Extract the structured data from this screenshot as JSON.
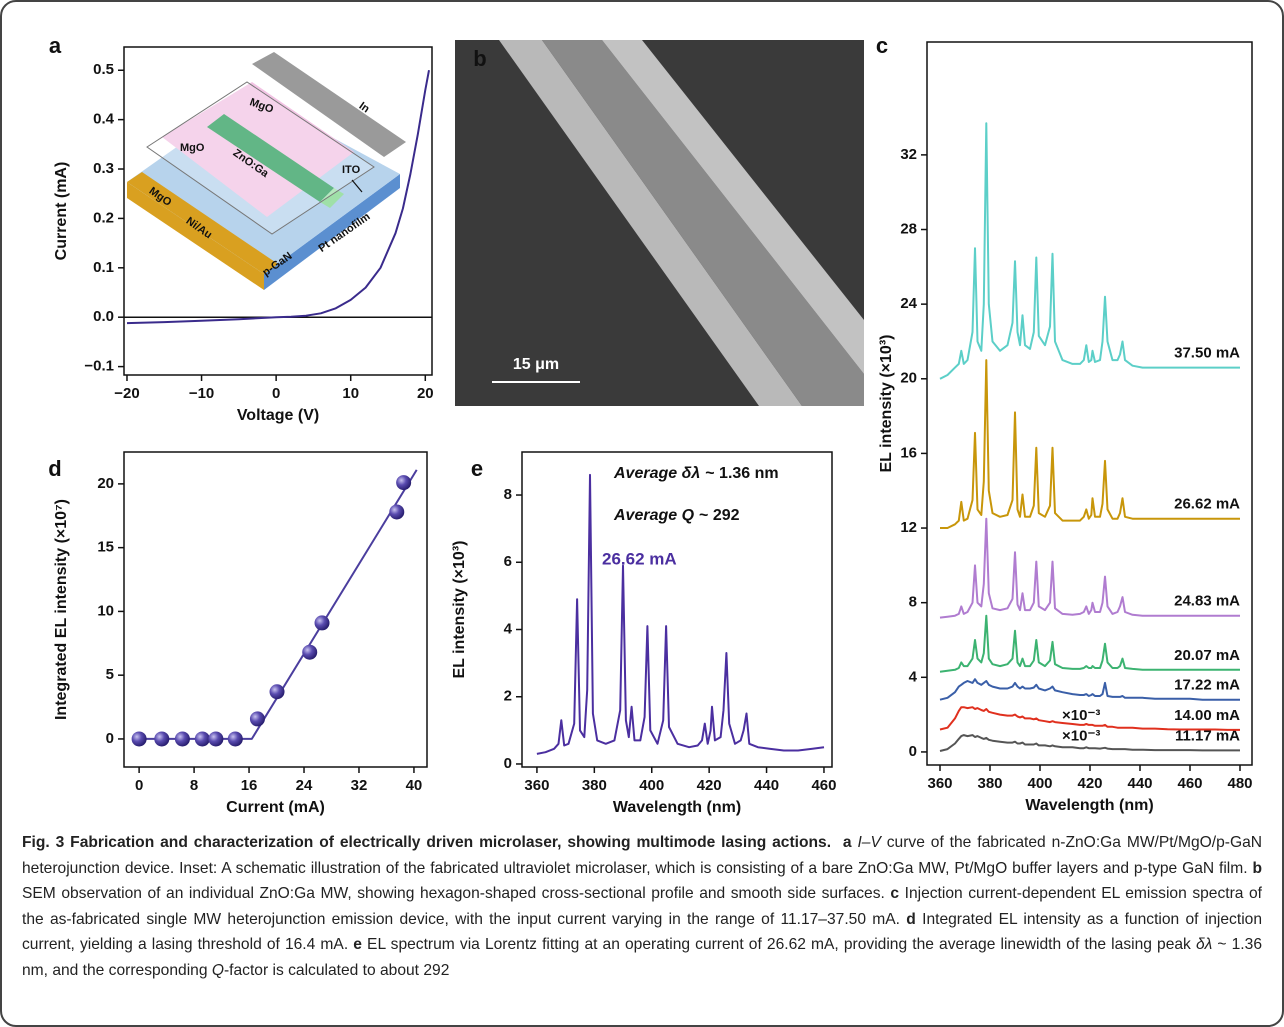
{
  "panel_b": {
    "label": "b",
    "scale_bar": "15 μm"
  },
  "inset": {
    "labels": [
      "In",
      "MgO",
      "MgO",
      "ZnO:Ga",
      "ITO",
      "MgO",
      "Ni/Au",
      "p-GaN",
      "Pt nanofilm"
    ]
  },
  "chart_data": [
    {
      "type": "line",
      "panel_label": "a",
      "x_label": "Voltage (V)",
      "y_label": "Current (mA)",
      "color": "#3a2b8c",
      "zero_line": true,
      "x": [
        -20,
        -15,
        -10,
        -5,
        0,
        2,
        4,
        6,
        8,
        10,
        12,
        14,
        16,
        17,
        18,
        19,
        20,
        20.5
      ],
      "values": [
        -0.012,
        -0.01,
        -0.007,
        -0.004,
        0,
        0.001,
        0.003,
        0.008,
        0.018,
        0.035,
        0.06,
        0.1,
        0.17,
        0.22,
        0.29,
        0.37,
        0.46,
        0.5
      ],
      "xlim": [
        -20.4,
        20.9
      ],
      "ylim": [
        -0.117,
        0.547
      ],
      "xticks": [
        {
          "value": -20,
          "label": "−20"
        },
        {
          "value": -10,
          "label": "−10"
        },
        0,
        10,
        20
      ],
      "yticks": [
        {
          "value": -0.1,
          "label": "−0.1"
        },
        {
          "value": 0,
          "label": "0.0"
        },
        0.1,
        0.2,
        0.3,
        0.4,
        0.5
      ]
    },
    {
      "type": "line",
      "panel_label": "c",
      "x_label": "Wavelength (nm)",
      "y_label": "EL intensity (×10³)",
      "x": [
        360,
        363,
        366,
        367.5,
        368.5,
        369.5,
        371,
        373,
        374,
        375,
        376.5,
        377.5,
        378.5,
        379.5,
        381,
        384,
        387,
        389,
        390,
        391,
        392,
        393,
        394,
        396,
        397.5,
        398.5,
        399.5,
        402,
        404,
        405,
        406,
        409,
        413,
        416,
        417.5,
        418.5,
        419.5,
        420.5,
        421,
        422,
        424,
        425,
        426,
        427,
        429,
        431,
        432,
        433,
        434,
        437,
        441,
        446,
        451,
        456,
        460,
        465,
        470,
        475,
        480
      ],
      "series": [
        {
          "name": "11.17 mA",
          "color": "#555555",
          "values": [
            0.05,
            0.15,
            0.45,
            0.7,
            0.85,
            0.9,
            0.85,
            0.9,
            0.8,
            0.85,
            0.75,
            0.7,
            0.75,
            0.65,
            0.6,
            0.55,
            0.5,
            0.5,
            0.55,
            0.45,
            0.45,
            0.5,
            0.4,
            0.4,
            0.4,
            0.45,
            0.35,
            0.35,
            0.3,
            0.35,
            0.3,
            0.25,
            0.25,
            0.2,
            0.2,
            0.25,
            0.2,
            0.2,
            0.2,
            0.2,
            0.18,
            0.2,
            0.22,
            0.18,
            0.15,
            0.15,
            0.15,
            0.15,
            0.15,
            0.12,
            0.12,
            0.1,
            0.1,
            0.1,
            0.1,
            0.08,
            0.08,
            0.08,
            0.08
          ]
        },
        {
          "name": "14.00 mA",
          "color": "#e0301e",
          "values": [
            1.2,
            1.3,
            1.8,
            2.2,
            2.4,
            2.4,
            2.35,
            2.4,
            2.3,
            2.35,
            2.25,
            2.2,
            2.3,
            2.15,
            2.1,
            2.0,
            1.95,
            1.95,
            2.0,
            1.9,
            1.85,
            1.9,
            1.8,
            1.8,
            1.75,
            1.8,
            1.7,
            1.65,
            1.6,
            1.65,
            1.6,
            1.55,
            1.5,
            1.45,
            1.45,
            1.5,
            1.45,
            1.45,
            1.45,
            1.4,
            1.4,
            1.4,
            1.45,
            1.35,
            1.35,
            1.3,
            1.3,
            1.3,
            1.3,
            1.3,
            1.25,
            1.25,
            1.22,
            1.2,
            1.2,
            1.2,
            1.2,
            1.18,
            1.18
          ]
        },
        {
          "name": "17.22 mA",
          "color": "#3a5fa8",
          "values": [
            2.8,
            2.9,
            3.2,
            3.5,
            3.6,
            3.7,
            3.8,
            3.7,
            3.9,
            3.7,
            3.6,
            3.7,
            3.8,
            3.6,
            3.5,
            3.4,
            3.4,
            3.5,
            3.7,
            3.5,
            3.4,
            3.5,
            3.4,
            3.4,
            3.45,
            3.6,
            3.4,
            3.3,
            3.4,
            3.5,
            3.3,
            3.2,
            3.1,
            3.05,
            3.05,
            3.1,
            3.0,
            3.05,
            3.1,
            3.0,
            3.0,
            3.1,
            3.7,
            3.0,
            2.95,
            2.95,
            2.95,
            3.0,
            2.9,
            2.9,
            2.9,
            2.85,
            2.85,
            2.85,
            2.85,
            2.8,
            2.8,
            2.8,
            2.8
          ]
        },
        {
          "name": "20.07 mA",
          "color": "#3cb371",
          "values": [
            4.3,
            4.35,
            4.4,
            4.5,
            4.8,
            4.6,
            4.6,
            5.0,
            6.0,
            5.0,
            4.8,
            5.3,
            7.3,
            5.0,
            4.7,
            4.6,
            4.7,
            5.0,
            6.5,
            4.8,
            4.6,
            5.0,
            4.6,
            4.6,
            4.9,
            6.0,
            4.8,
            4.6,
            4.9,
            5.9,
            4.7,
            4.5,
            4.45,
            4.45,
            4.5,
            4.6,
            4.5,
            4.5,
            4.6,
            4.5,
            4.5,
            4.9,
            5.8,
            4.8,
            4.5,
            4.5,
            4.6,
            5.0,
            4.5,
            4.45,
            4.4,
            4.4,
            4.4,
            4.4,
            4.4,
            4.4,
            4.4,
            4.4,
            4.4
          ]
        },
        {
          "name": "24.83 mA",
          "color": "#b07cd0",
          "values": [
            7.2,
            7.25,
            7.3,
            7.4,
            7.8,
            7.4,
            7.5,
            8.0,
            10.0,
            8.0,
            7.8,
            9.0,
            12.5,
            8.5,
            7.7,
            7.6,
            7.7,
            8.2,
            10.7,
            7.9,
            7.6,
            8.5,
            7.6,
            7.6,
            8.0,
            10.2,
            7.8,
            7.6,
            8.0,
            10.2,
            7.7,
            7.4,
            7.35,
            7.4,
            7.5,
            7.8,
            7.4,
            7.6,
            8.0,
            7.5,
            7.5,
            8.0,
            9.4,
            7.8,
            7.4,
            7.5,
            7.8,
            8.3,
            7.5,
            7.35,
            7.3,
            7.3,
            7.3,
            7.3,
            7.3,
            7.3,
            7.3,
            7.3,
            7.3
          ]
        },
        {
          "name": "26.62 mA",
          "color": "#c8960a",
          "values": [
            12.0,
            12.0,
            12.2,
            12.4,
            13.4,
            12.4,
            12.5,
            13.5,
            17.1,
            13.0,
            12.7,
            14.5,
            21.0,
            14.0,
            12.8,
            12.6,
            12.7,
            13.5,
            18.2,
            13.0,
            12.6,
            13.8,
            12.6,
            12.6,
            13.2,
            16.3,
            12.8,
            12.6,
            13.2,
            16.3,
            12.8,
            12.4,
            12.4,
            12.4,
            12.6,
            13.0,
            12.5,
            12.7,
            13.6,
            12.6,
            12.6,
            13.3,
            15.6,
            13.0,
            12.5,
            12.5,
            12.8,
            13.6,
            12.6,
            12.5,
            12.5,
            12.5,
            12.5,
            12.5,
            12.5,
            12.5,
            12.5,
            12.5,
            12.5
          ]
        },
        {
          "name": "37.50 mA",
          "color": "#5ccfc8",
          "values": [
            20.0,
            20.2,
            20.6,
            20.8,
            21.5,
            20.8,
            21.0,
            22.5,
            27.0,
            22.0,
            21.5,
            24.0,
            33.7,
            24.0,
            22.0,
            21.5,
            21.8,
            23.0,
            26.3,
            22.5,
            21.8,
            23.4,
            21.8,
            21.6,
            22.5,
            26.5,
            22.3,
            21.8,
            22.8,
            26.7,
            22.0,
            21.0,
            20.8,
            20.8,
            21.0,
            21.8,
            20.9,
            21.0,
            21.5,
            20.9,
            21.0,
            22.0,
            24.4,
            22.0,
            21.0,
            21.0,
            21.3,
            22.0,
            21.0,
            20.7,
            20.6,
            20.6,
            20.6,
            20.6,
            20.6,
            20.6,
            20.6,
            20.6,
            20.6
          ]
        }
      ],
      "annotations": [
        "×10⁻³",
        "×10⁻³"
      ],
      "xlim": [
        354.8,
        484.8
      ],
      "ylim": [
        -0.7,
        38.05
      ],
      "xticks": [
        360,
        380,
        400,
        420,
        440,
        460,
        480
      ],
      "yticks": [
        0,
        4,
        8,
        12,
        16,
        20,
        24,
        28,
        32
      ]
    },
    {
      "type": "scatter",
      "panel_label": "d",
      "x_label": "Current (mA)",
      "y_label": "Integrated EL intensity (×10⁷)",
      "color": "#4b3e9e",
      "x": [
        0,
        3.3,
        6.3,
        9.2,
        11.17,
        14.0,
        17.22,
        20.07,
        24.83,
        26.62,
        37.5,
        38.5
      ],
      "values": [
        0,
        0,
        0,
        0,
        0,
        0,
        1.57,
        3.7,
        6.8,
        9.1,
        17.8,
        20.1
      ],
      "fit": {
        "x": [
          0,
          16.4,
          40.4
        ],
        "values": [
          0,
          0,
          21.1
        ]
      },
      "xlim": [
        -2.2,
        41.9
      ],
      "ylim": [
        -2.2,
        22.5
      ],
      "xticks": [
        0,
        8,
        16,
        24,
        32,
        40
      ],
      "yticks": [
        0,
        5,
        10,
        15,
        20
      ]
    },
    {
      "type": "line",
      "panel_label": "e",
      "x_label": "Wavelength (nm)",
      "y_label": "EL intensity (×10³)",
      "color": "#4b2fa0",
      "x": [
        360,
        363,
        366,
        367.5,
        368.5,
        369.5,
        371,
        373,
        374,
        375,
        376.5,
        377.5,
        378.5,
        379.5,
        381,
        384,
        387,
        389,
        390,
        391,
        392,
        393,
        394,
        396,
        397.5,
        398.5,
        399.5,
        402,
        404,
        405,
        406,
        409,
        413,
        416,
        417.5,
        418.5,
        419.5,
        420.5,
        421,
        422,
        424,
        425,
        426,
        427,
        429,
        431,
        432,
        433,
        434,
        437,
        441,
        446,
        451,
        456,
        460
      ],
      "values": [
        0.3,
        0.35,
        0.45,
        0.6,
        1.3,
        0.55,
        0.6,
        1.2,
        4.9,
        1.0,
        0.8,
        2.2,
        8.6,
        1.5,
        0.7,
        0.6,
        0.7,
        1.6,
        5.9,
        1.3,
        0.8,
        1.7,
        0.7,
        0.7,
        1.4,
        4.1,
        1.0,
        0.6,
        1.3,
        4.1,
        1.1,
        0.6,
        0.5,
        0.55,
        0.7,
        1.2,
        0.6,
        1.0,
        1.7,
        0.7,
        0.8,
        1.6,
        3.3,
        1.2,
        0.6,
        0.7,
        1.0,
        1.5,
        0.6,
        0.5,
        0.45,
        0.4,
        0.4,
        0.45,
        0.5
      ],
      "annotations": [
        [
          "Average δλ",
          "~ 1.36 nm"
        ],
        [
          "Average Q",
          "~ 292"
        ]
      ],
      "series_label": "26.62 mA",
      "xlim": [
        354.8,
        462.8
      ],
      "ylim": [
        -0.09,
        9.28
      ],
      "xticks": [
        360,
        380,
        400,
        420,
        440,
        460
      ],
      "yticks": [
        0,
        2,
        4,
        6,
        8
      ]
    }
  ],
  "caption": {
    "runs": [
      {
        "style": "bold",
        "text": "Fig. 3 Fabrication and characterization of electrically driven microlaser, showing multimode lasing actions.  a "
      },
      {
        "style": "italic",
        "text": "I–V"
      },
      {
        "style": "normal",
        "text": " curve of the fabricated n-ZnO:Ga MW/Pt/MgO/p-GaN heterojunction device. Inset: A schematic illustration of the fabricated ultraviolet microlaser, which is consisting of a bare ZnO:Ga MW, Pt/MgO buffer layers and p-type GaN film. "
      },
      {
        "style": "bold",
        "text": "b"
      },
      {
        "style": "normal",
        "text": " SEM observation of an individual ZnO:Ga MW, showing hexagon-shaped cross-sectional profile and smooth side surfaces. "
      },
      {
        "style": "bold",
        "text": "c"
      },
      {
        "style": "normal",
        "text": " Injection current-dependent EL emission spectra of the as-fabricated single MW heterojunction emission device, with the input current varying in the range of 11.17–37.50 mA. "
      },
      {
        "style": "bold",
        "text": "d"
      },
      {
        "style": "normal",
        "text": " Integrated EL intensity as a function of injection current, yielding a lasing threshold of 16.4 mA. "
      },
      {
        "style": "bold",
        "text": "e"
      },
      {
        "style": "normal",
        "text": " EL spectrum via Lorentz fitting at an operating current of 26.62 mA, providing the average linewidth of the lasing peak "
      },
      {
        "style": "italic",
        "text": "δλ"
      },
      {
        "style": "normal",
        "text": " ~ 1.36 nm, and the corresponding "
      },
      {
        "style": "italic",
        "text": "Q"
      },
      {
        "style": "normal",
        "text": "-factor is calculated to about 292"
      }
    ]
  }
}
